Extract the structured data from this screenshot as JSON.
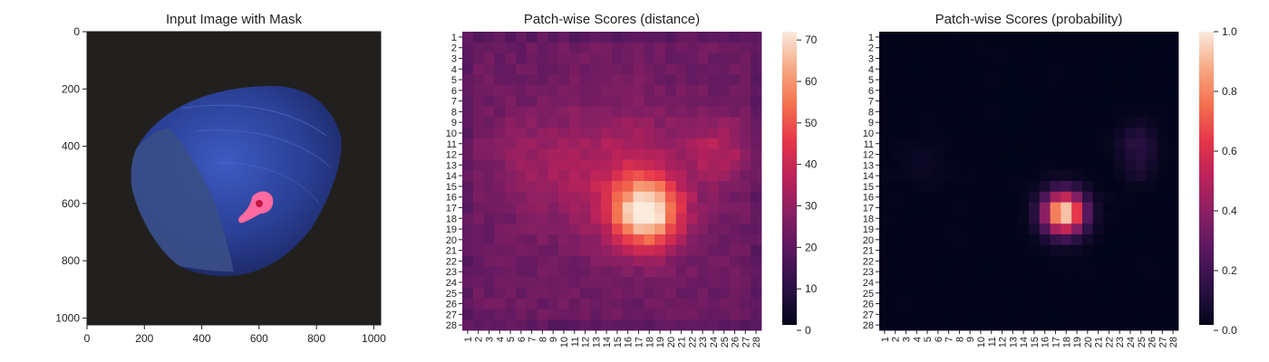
{
  "chart_data": [
    {
      "type": "image",
      "title": "Input Image with Mask",
      "x_ticks": [
        0,
        200,
        400,
        600,
        800,
        1000
      ],
      "y_ticks": [
        0,
        200,
        400,
        600,
        800,
        1000
      ],
      "xlim": [
        0,
        1024
      ],
      "ylim": [
        1024,
        0
      ],
      "colors": {
        "background": "#22201e",
        "object": "#2b3f8c",
        "mask": "#ff6aa0"
      }
    },
    {
      "type": "heatmap",
      "title": "Patch-wise Scores (distance)",
      "rows": [
        "1",
        "2",
        "3",
        "4",
        "5",
        "6",
        "7",
        "8",
        "9",
        "10",
        "11",
        "12",
        "13",
        "14",
        "15",
        "16",
        "17",
        "18",
        "19",
        "20",
        "21",
        "22",
        "23",
        "24",
        "25",
        "26",
        "27",
        "28"
      ],
      "cols": [
        "1",
        "2",
        "3",
        "4",
        "5",
        "6",
        "7",
        "8",
        "9",
        "10",
        "11",
        "12",
        "13",
        "14",
        "15",
        "16",
        "17",
        "18",
        "19",
        "20",
        "21",
        "22",
        "23",
        "24",
        "25",
        "26",
        "27",
        "28"
      ],
      "vmin": 0,
      "vmax": 72,
      "colorbar_ticks": [
        0,
        10,
        20,
        30,
        40,
        50,
        60,
        70
      ],
      "colormap": "rocket",
      "base_value": 22,
      "hotspots": [
        {
          "row": 17.5,
          "col": 17.8,
          "peak": 48,
          "spread": 2.2
        },
        {
          "row": 14.0,
          "col": 15.0,
          "peak": 14,
          "spread": 4.5
        },
        {
          "row": 11.5,
          "col": 24.5,
          "peak": 12,
          "spread": 2.2
        },
        {
          "row": 12.5,
          "col": 6.5,
          "peak": 6,
          "spread": 3.0
        }
      ]
    },
    {
      "type": "heatmap",
      "title": "Patch-wise Scores (probability)",
      "rows": [
        "1",
        "2",
        "3",
        "4",
        "5",
        "6",
        "7",
        "8",
        "9",
        "10",
        "11",
        "12",
        "13",
        "14",
        "15",
        "16",
        "17",
        "18",
        "19",
        "20",
        "21",
        "22",
        "23",
        "24",
        "25",
        "26",
        "27",
        "28"
      ],
      "cols": [
        "1",
        "2",
        "3",
        "4",
        "5",
        "6",
        "7",
        "8",
        "9",
        "10",
        "11",
        "12",
        "13",
        "14",
        "15",
        "16",
        "17",
        "18",
        "19",
        "20",
        "21",
        "22",
        "23",
        "24",
        "25",
        "26",
        "27",
        "28"
      ],
      "vmin": 0,
      "vmax": 1,
      "colorbar_ticks": [
        0.0,
        0.2,
        0.4,
        0.6,
        0.8,
        1.0
      ],
      "colorbar_tick_labels": [
        "0.0",
        "0.2",
        "0.4",
        "0.6",
        "0.8",
        "1.0"
      ],
      "colormap": "rocket",
      "base_value": 0,
      "hotspots": [
        {
          "row": 17.5,
          "col": 17.8,
          "peak": 1.0,
          "spread": 1.35
        },
        {
          "row": 11.0,
          "col": 24.7,
          "peak": 0.12,
          "spread": 1.3
        },
        {
          "row": 13.5,
          "col": 24.8,
          "peak": 0.06,
          "spread": 1.0
        },
        {
          "row": 13.0,
          "col": 4.5,
          "peak": 0.03,
          "spread": 1.5
        }
      ]
    }
  ]
}
